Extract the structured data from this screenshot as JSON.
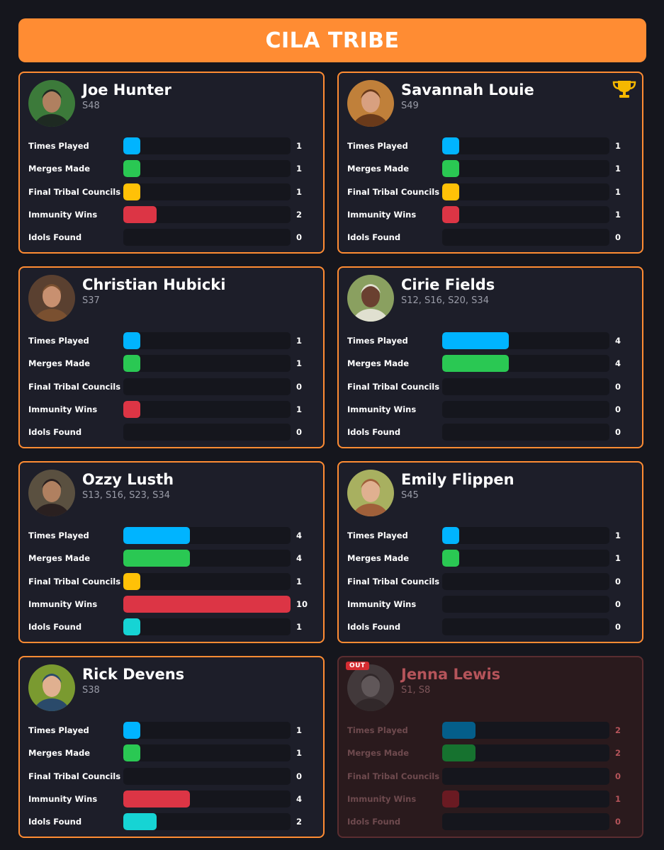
{
  "header": {
    "title": "CILA TRIBE"
  },
  "stat_labels": [
    "Times Played",
    "Merges Made",
    "Final Tribal Councils",
    "Immunity Wins",
    "Idols Found"
  ],
  "colors": {
    "accent": "#ff8c33",
    "times_played": "#00b4ff",
    "merges_made": "#2ac853",
    "final_tribal_councils": "#ffc107",
    "immunity_wins": "#dc3545",
    "idols_found": "#16d4d4",
    "out_badge": "#d62c32"
  },
  "scale_max": 10,
  "players": [
    {
      "name": "Joe Hunter",
      "seasons": "S48",
      "stats": [
        1,
        1,
        1,
        2,
        0
      ],
      "winner": false,
      "out": false
    },
    {
      "name": "Savannah Louie",
      "seasons": "S49",
      "stats": [
        1,
        1,
        1,
        1,
        0
      ],
      "winner": true,
      "trophy_icon": "trophy-icon",
      "out": false
    },
    {
      "name": "Christian Hubicki",
      "seasons": "S37",
      "stats": [
        1,
        1,
        0,
        1,
        0
      ],
      "winner": false,
      "out": false
    },
    {
      "name": "Cirie Fields",
      "seasons": "S12, S16, S20, S34",
      "stats": [
        4,
        4,
        0,
        0,
        0
      ],
      "winner": false,
      "out": false
    },
    {
      "name": "Ozzy Lusth",
      "seasons": "S13, S16, S23, S34",
      "stats": [
        4,
        4,
        1,
        10,
        1
      ],
      "winner": false,
      "out": false
    },
    {
      "name": "Emily Flippen",
      "seasons": "S45",
      "stats": [
        1,
        1,
        0,
        0,
        0
      ],
      "winner": false,
      "out": false
    },
    {
      "name": "Rick Devens",
      "seasons": "S38",
      "stats": [
        1,
        1,
        0,
        4,
        2
      ],
      "winner": false,
      "out": false
    },
    {
      "name": "Jenna Lewis",
      "seasons": "S1, S8",
      "stats": [
        2,
        2,
        0,
        1,
        0
      ],
      "winner": false,
      "out": true,
      "badge": "OUT"
    }
  ]
}
